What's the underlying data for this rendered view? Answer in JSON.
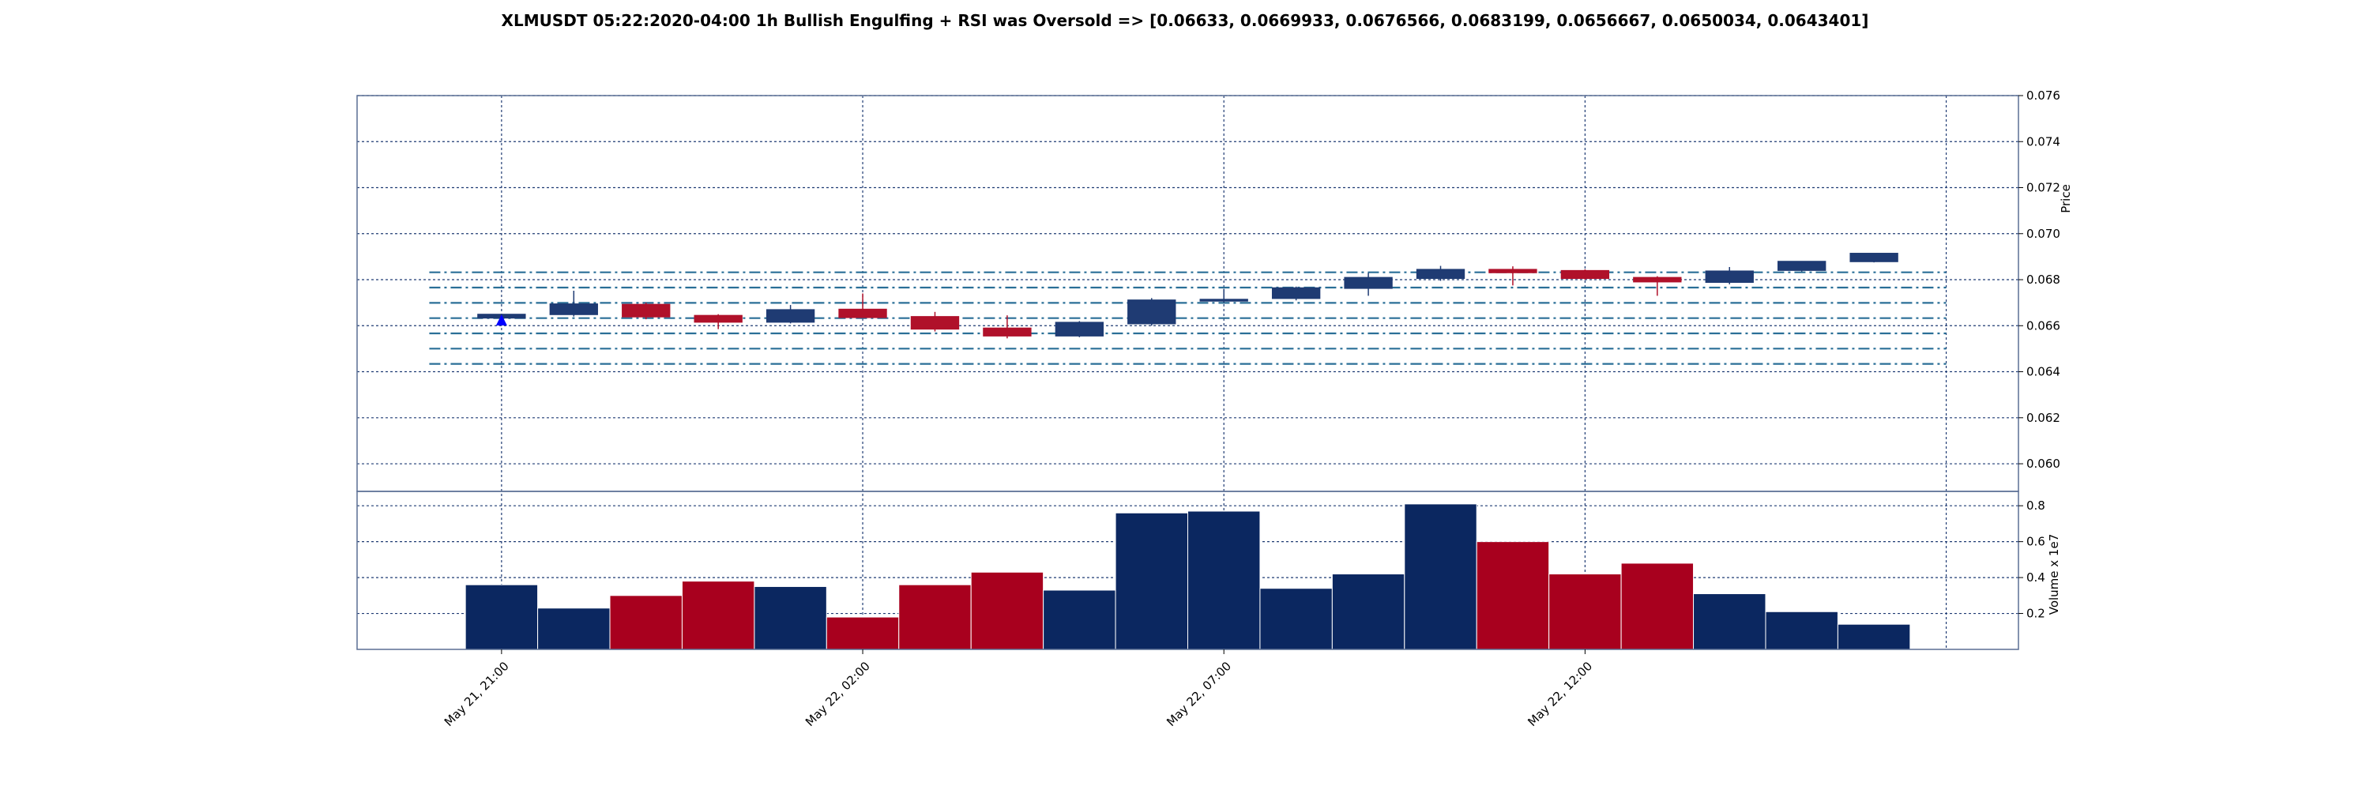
{
  "chart_data": {
    "type": "candlestick",
    "title": "XLMUSDT 05:22:2020-04:00 1h Bullish Engulfing + RSI was Oversold => [0.06633, 0.0669933, 0.0676566, 0.0683199, 0.0656667, 0.0650034, 0.0643401]",
    "price_axis": {
      "label": "Price",
      "ylim": [
        0.0588,
        0.076
      ],
      "ticks": [
        0.06,
        0.062,
        0.064,
        0.066,
        0.068,
        0.07,
        0.072,
        0.074,
        0.076
      ],
      "tick_labels": [
        "0.060",
        "0.062",
        "0.064",
        "0.066",
        "0.068",
        "0.070",
        "0.072",
        "0.074",
        "0.076"
      ],
      "position": "right"
    },
    "volume_axis": {
      "label": "Volume x 1e7",
      "ylim": [
        0,
        0.88
      ],
      "ticks": [
        0.2,
        0.4,
        0.6,
        0.8
      ],
      "tick_labels": [
        "0.2",
        "0.4",
        "0.6",
        "0.8"
      ],
      "position": "right"
    },
    "x_ticks": [
      {
        "index": 0,
        "label": "May 21, 21:00"
      },
      {
        "index": 5,
        "label": "May 22, 02:00"
      },
      {
        "index": 10,
        "label": "May 22, 07:00"
      },
      {
        "index": 15,
        "label": "May 22, 12:00"
      }
    ],
    "x_range": [
      -2,
      21
    ],
    "candles": [
      {
        "open": 0.06633,
        "high": 0.0665,
        "low": 0.06625,
        "close": 0.0665,
        "volume": 0.36
      },
      {
        "open": 0.06648,
        "high": 0.06752,
        "low": 0.0664,
        "close": 0.06695,
        "volume": 0.23
      },
      {
        "open": 0.06693,
        "high": 0.067,
        "low": 0.06628,
        "close": 0.06638,
        "volume": 0.3
      },
      {
        "open": 0.06645,
        "high": 0.0665,
        "low": 0.06585,
        "close": 0.06615,
        "volume": 0.38
      },
      {
        "open": 0.06615,
        "high": 0.0669,
        "low": 0.0661,
        "close": 0.0667,
        "volume": 0.35
      },
      {
        "open": 0.06672,
        "high": 0.0674,
        "low": 0.06635,
        "close": 0.06635,
        "volume": 0.18
      },
      {
        "open": 0.0664,
        "high": 0.0666,
        "low": 0.06575,
        "close": 0.06585,
        "volume": 0.36
      },
      {
        "open": 0.0659,
        "high": 0.06645,
        "low": 0.06545,
        "close": 0.06555,
        "volume": 0.43
      },
      {
        "open": 0.06555,
        "high": 0.0662,
        "low": 0.0655,
        "close": 0.06615,
        "volume": 0.33
      },
      {
        "open": 0.06608,
        "high": 0.0672,
        "low": 0.066,
        "close": 0.06712,
        "volume": 0.76
      },
      {
        "open": 0.0671,
        "high": 0.0676,
        "low": 0.067,
        "close": 0.06715,
        "volume": 0.77
      },
      {
        "open": 0.06718,
        "high": 0.0677,
        "low": 0.0671,
        "close": 0.06765,
        "volume": 0.34
      },
      {
        "open": 0.06762,
        "high": 0.0683,
        "low": 0.0673,
        "close": 0.0681,
        "volume": 0.42
      },
      {
        "open": 0.06805,
        "high": 0.0686,
        "low": 0.06795,
        "close": 0.06845,
        "volume": 0.81
      },
      {
        "open": 0.06845,
        "high": 0.06858,
        "low": 0.06775,
        "close": 0.0683,
        "volume": 0.6
      },
      {
        "open": 0.0684,
        "high": 0.06845,
        "low": 0.068,
        "close": 0.06805,
        "volume": 0.42
      },
      {
        "open": 0.0681,
        "high": 0.06815,
        "low": 0.0673,
        "close": 0.0679,
        "volume": 0.48
      },
      {
        "open": 0.06788,
        "high": 0.06855,
        "low": 0.0678,
        "close": 0.06838,
        "volume": 0.31
      },
      {
        "open": 0.0684,
        "high": 0.0688,
        "low": 0.06835,
        "close": 0.0688,
        "volume": 0.21
      },
      {
        "open": 0.06878,
        "high": 0.06915,
        "low": 0.06875,
        "close": 0.06915,
        "volume": 0.14
      }
    ],
    "levels": [
      0.06633,
      0.0669933,
      0.0676566,
      0.0683199,
      0.0656667,
      0.0650034,
      0.0643401
    ],
    "signal_marker": {
      "index": 0,
      "price": 0.06625,
      "shape": "triangle-up",
      "color": "#0000ff"
    },
    "grid": true,
    "colors": {
      "bull": "#1f3b73",
      "bear": "#b0112a",
      "volume_bull": "#0b2760",
      "volume_bear": "#a8001e",
      "grid": "#1f3b73",
      "level_line": "#2a6f97",
      "frame": "#5a6e94"
    }
  }
}
